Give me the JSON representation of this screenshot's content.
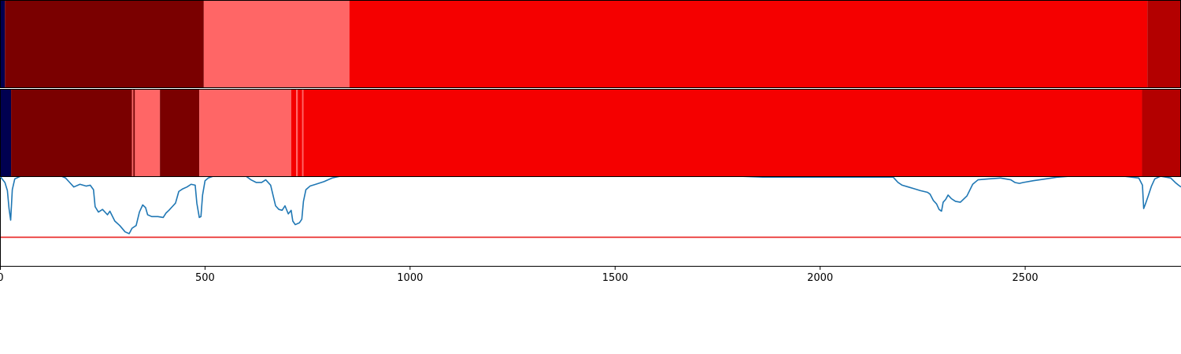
{
  "chart_data": {
    "type": "heatmap",
    "title": "",
    "xlabel": "",
    "ylabel": "",
    "xlim": [
      0,
      2880
    ],
    "x_ticks": [
      {
        "value": 0,
        "label": "0"
      },
      {
        "value": 500,
        "label": "500"
      },
      {
        "value": 1000,
        "label": "1000"
      },
      {
        "value": 1500,
        "label": "1500"
      },
      {
        "value": 2000,
        "label": "2000"
      },
      {
        "value": 2500,
        "label": "2500"
      }
    ],
    "tracks": [
      {
        "name": "",
        "segments": [
          {
            "start": 0,
            "end": 12,
            "color": "#000050"
          },
          {
            "start": 12,
            "end": 497,
            "color": "#7a0000"
          },
          {
            "start": 497,
            "end": 852,
            "color": "#ff6666"
          },
          {
            "start": 852,
            "end": 2798,
            "color": "#f50000"
          },
          {
            "start": 2798,
            "end": 2880,
            "color": "#b30000"
          }
        ]
      },
      {
        "name": "",
        "segments": [
          {
            "start": 0,
            "end": 27,
            "color": "#000050"
          },
          {
            "start": 27,
            "end": 322,
            "color": "#7a0000"
          },
          {
            "start": 322,
            "end": 325,
            "color": "#ff6666"
          },
          {
            "start": 325,
            "end": 329,
            "color": "#7a0000"
          },
          {
            "start": 329,
            "end": 390,
            "color": "#ff6666"
          },
          {
            "start": 390,
            "end": 486,
            "color": "#7a0000"
          },
          {
            "start": 486,
            "end": 710,
            "color": "#ff6666"
          },
          {
            "start": 710,
            "end": 722,
            "color": "#f50000"
          },
          {
            "start": 722,
            "end": 726,
            "color": "#ff6666"
          },
          {
            "start": 726,
            "end": 737,
            "color": "#f50000"
          },
          {
            "start": 737,
            "end": 740,
            "color": "#ff6666"
          },
          {
            "start": 740,
            "end": 2785,
            "color": "#f50000"
          },
          {
            "start": 2785,
            "end": 2880,
            "color": "#b30000"
          }
        ]
      }
    ],
    "line_panel": {
      "ylim": [
        0,
        1
      ],
      "threshold": {
        "value": 0.32,
        "color": "#e8211f"
      },
      "series": [
        {
          "name": "",
          "color": "#1f77b4",
          "points": [
            [
              0,
              1.0
            ],
            [
              5,
              0.97
            ],
            [
              12,
              0.93
            ],
            [
              18,
              0.84
            ],
            [
              22,
              0.64
            ],
            [
              26,
              0.51
            ],
            [
              30,
              0.85
            ],
            [
              36,
              0.97
            ],
            [
              50,
              1.0
            ],
            [
              100,
              1.0
            ],
            [
              150,
              1.0
            ],
            [
              160,
              0.98
            ],
            [
              170,
              0.93
            ],
            [
              180,
              0.88
            ],
            [
              195,
              0.91
            ],
            [
              210,
              0.89
            ],
            [
              220,
              0.9
            ],
            [
              228,
              0.85
            ],
            [
              232,
              0.66
            ],
            [
              240,
              0.6
            ],
            [
              250,
              0.63
            ],
            [
              262,
              0.57
            ],
            [
              268,
              0.61
            ],
            [
              280,
              0.5
            ],
            [
              292,
              0.45
            ],
            [
              305,
              0.38
            ],
            [
              315,
              0.36
            ],
            [
              322,
              0.42
            ],
            [
              332,
              0.45
            ],
            [
              340,
              0.6
            ],
            [
              348,
              0.68
            ],
            [
              355,
              0.65
            ],
            [
              360,
              0.57
            ],
            [
              370,
              0.55
            ],
            [
              385,
              0.55
            ],
            [
              398,
              0.54
            ],
            [
              405,
              0.59
            ],
            [
              412,
              0.62
            ],
            [
              420,
              0.66
            ],
            [
              428,
              0.7
            ],
            [
              436,
              0.83
            ],
            [
              446,
              0.86
            ],
            [
              456,
              0.88
            ],
            [
              466,
              0.91
            ],
            [
              476,
              0.9
            ],
            [
              480,
              0.7
            ],
            [
              486,
              0.54
            ],
            [
              490,
              0.55
            ],
            [
              494,
              0.79
            ],
            [
              500,
              0.95
            ],
            [
              508,
              0.98
            ],
            [
              520,
              1.0
            ],
            [
              560,
              1.0
            ],
            [
              600,
              1.0
            ],
            [
              612,
              0.96
            ],
            [
              625,
              0.93
            ],
            [
              638,
              0.93
            ],
            [
              648,
              0.96
            ],
            [
              660,
              0.9
            ],
            [
              672,
              0.67
            ],
            [
              680,
              0.63
            ],
            [
              688,
              0.62
            ],
            [
              695,
              0.67
            ],
            [
              703,
              0.58
            ],
            [
              710,
              0.62
            ],
            [
              714,
              0.5
            ],
            [
              720,
              0.46
            ],
            [
              730,
              0.48
            ],
            [
              736,
              0.52
            ],
            [
              740,
              0.72
            ],
            [
              746,
              0.85
            ],
            [
              756,
              0.89
            ],
            [
              770,
              0.91
            ],
            [
              790,
              0.94
            ],
            [
              810,
              0.98
            ],
            [
              830,
              1.0
            ],
            [
              1800,
              1.0
            ],
            [
              1860,
              0.99
            ],
            [
              1960,
              0.99
            ],
            [
              2060,
              0.99
            ],
            [
              2120,
              0.99
            ],
            [
              2178,
              0.99
            ],
            [
              2184,
              0.96
            ],
            [
              2190,
              0.93
            ],
            [
              2200,
              0.9
            ],
            [
              2215,
              0.88
            ],
            [
              2230,
              0.86
            ],
            [
              2244,
              0.84
            ],
            [
              2262,
              0.82
            ],
            [
              2268,
              0.8
            ],
            [
              2276,
              0.73
            ],
            [
              2284,
              0.69
            ],
            [
              2290,
              0.63
            ],
            [
              2296,
              0.61
            ],
            [
              2300,
              0.71
            ],
            [
              2306,
              0.74
            ],
            [
              2312,
              0.79
            ],
            [
              2320,
              0.75
            ],
            [
              2330,
              0.72
            ],
            [
              2342,
              0.71
            ],
            [
              2358,
              0.78
            ],
            [
              2372,
              0.91
            ],
            [
              2385,
              0.96
            ],
            [
              2410,
              0.97
            ],
            [
              2440,
              0.98
            ],
            [
              2465,
              0.96
            ],
            [
              2475,
              0.93
            ],
            [
              2486,
              0.92
            ],
            [
              2495,
              0.93
            ],
            [
              2520,
              0.95
            ],
            [
              2550,
              0.97
            ],
            [
              2580,
              0.99
            ],
            [
              2610,
              1.0
            ],
            [
              2740,
              1.0
            ],
            [
              2777,
              0.98
            ],
            [
              2786,
              0.9
            ],
            [
              2789,
              0.64
            ],
            [
              2794,
              0.7
            ],
            [
              2800,
              0.78
            ],
            [
              2808,
              0.89
            ],
            [
              2816,
              0.97
            ],
            [
              2830,
              1.0
            ],
            [
              2855,
              0.98
            ],
            [
              2866,
              0.93
            ],
            [
              2874,
              0.9
            ],
            [
              2880,
              0.88
            ]
          ]
        }
      ]
    }
  }
}
